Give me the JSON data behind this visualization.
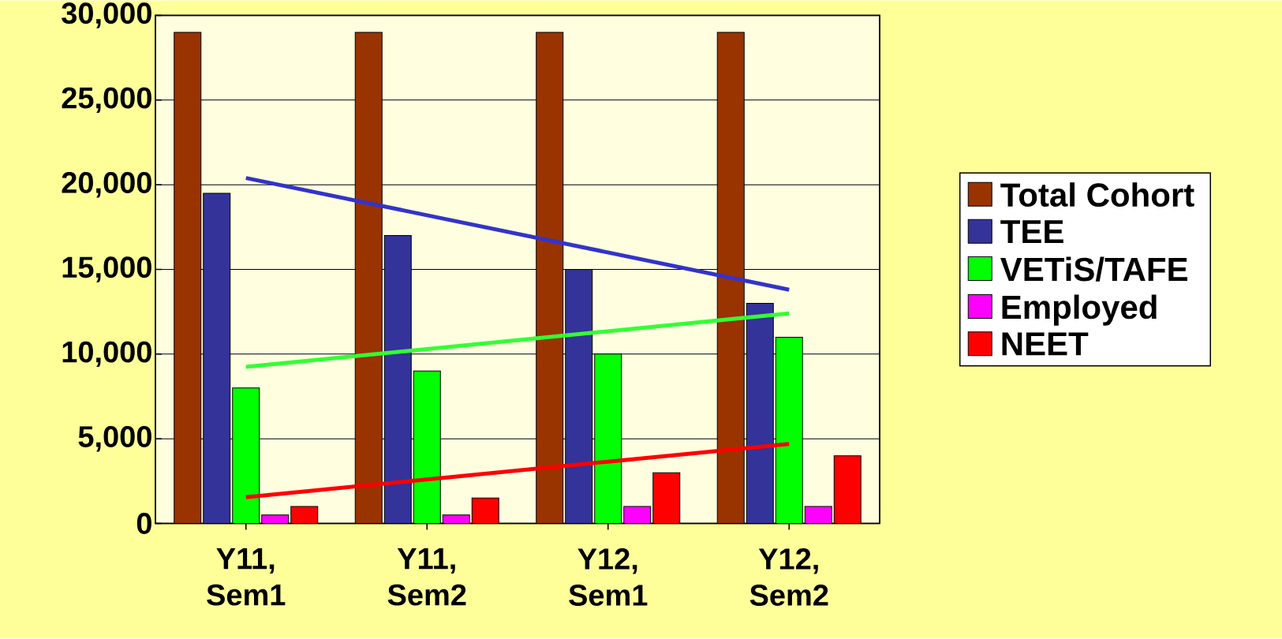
{
  "chart_data": {
    "type": "bar",
    "categories": [
      "Y11, Sem1",
      "Y11, Sem2",
      "Y12, Sem1",
      "Y12, Sem2"
    ],
    "series": [
      {
        "name": "Total Cohort",
        "color": "#993300",
        "values": [
          29000,
          29000,
          29000,
          29000
        ]
      },
      {
        "name": "TEE",
        "color": "#333399",
        "values": [
          19500,
          17000,
          15000,
          13000
        ]
      },
      {
        "name": "VETiS/TAFE",
        "color": "#00ff00",
        "values": [
          8000,
          9000,
          10000,
          11000
        ]
      },
      {
        "name": "Employed",
        "color": "#ff00ff",
        "values": [
          500,
          500,
          1000,
          1000
        ]
      },
      {
        "name": "NEET",
        "color": "#ff0000",
        "values": [
          1000,
          1500,
          3000,
          4000
        ]
      },
      {
        "type": "line",
        "color": "#3333cc",
        "values": [
          20400,
          18200,
          16000,
          13800
        ]
      },
      {
        "type": "line",
        "color": "#33ff33",
        "values": [
          9250,
          10300,
          11350,
          12400
        ]
      },
      {
        "type": "line",
        "color": "#ff0000",
        "values": [
          1550,
          2600,
          3650,
          4700
        ]
      }
    ],
    "ylim": [
      0,
      30000
    ],
    "yticks": [
      {
        "value": 0,
        "label": "0"
      },
      {
        "value": 5000,
        "label": "5,000"
      },
      {
        "value": 10000,
        "label": "10,000"
      },
      {
        "value": 15000,
        "label": "15,000"
      },
      {
        "value": 20000,
        "label": "20,000"
      },
      {
        "value": 25000,
        "label": "25,000"
      },
      {
        "value": 30000,
        "label": "30,000"
      }
    ],
    "grid": "y",
    "legend": "right"
  }
}
